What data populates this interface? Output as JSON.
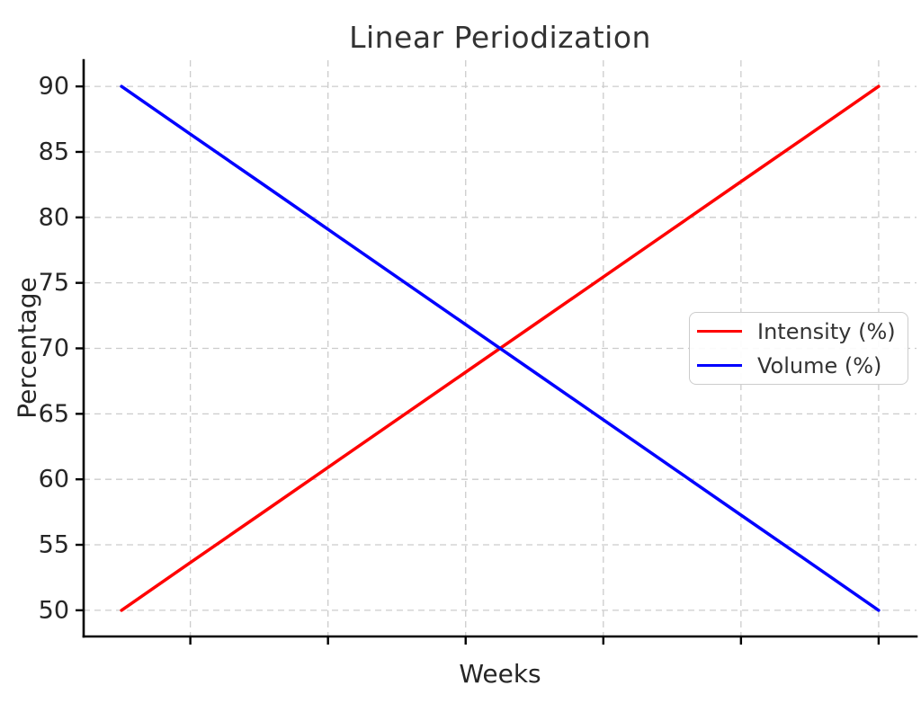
{
  "chart_data": {
    "type": "line",
    "title": "Linear Periodization",
    "xlabel": "Weeks",
    "ylabel": "Percentage",
    "x": [
      1,
      2,
      3,
      4,
      5,
      6,
      7,
      8,
      9,
      10,
      11,
      12
    ],
    "series": [
      {
        "name": "Intensity (%)",
        "color": "#ff0000",
        "values": [
          50.0,
          53.64,
          57.27,
          60.91,
          64.55,
          68.18,
          71.82,
          75.45,
          79.09,
          82.73,
          86.36,
          90.0
        ]
      },
      {
        "name": "Volume (%)",
        "color": "#0000ff",
        "values": [
          90.0,
          86.36,
          82.73,
          79.09,
          75.45,
          71.82,
          68.18,
          64.55,
          60.91,
          57.27,
          53.64,
          50.0
        ]
      }
    ],
    "xlim": [
      0.45,
      12.55
    ],
    "ylim": [
      48,
      92
    ],
    "yticks": [
      50,
      55,
      60,
      65,
      70,
      75,
      80,
      85,
      90
    ],
    "ytick_labels": [
      "50",
      "55",
      "60",
      "65",
      "70",
      "75",
      "80",
      "85",
      "90"
    ],
    "xticks": [
      2,
      4,
      6,
      8,
      10,
      12
    ],
    "xtick_labels": [
      "",
      "",
      "",
      "",
      "",
      ""
    ],
    "grid": true,
    "grid_style": "dashed",
    "grid_color": "#cccccc",
    "spine_color": "#000000",
    "legend": {
      "position": "center right",
      "items": [
        "Intensity (%)",
        "Volume (%)"
      ]
    }
  }
}
